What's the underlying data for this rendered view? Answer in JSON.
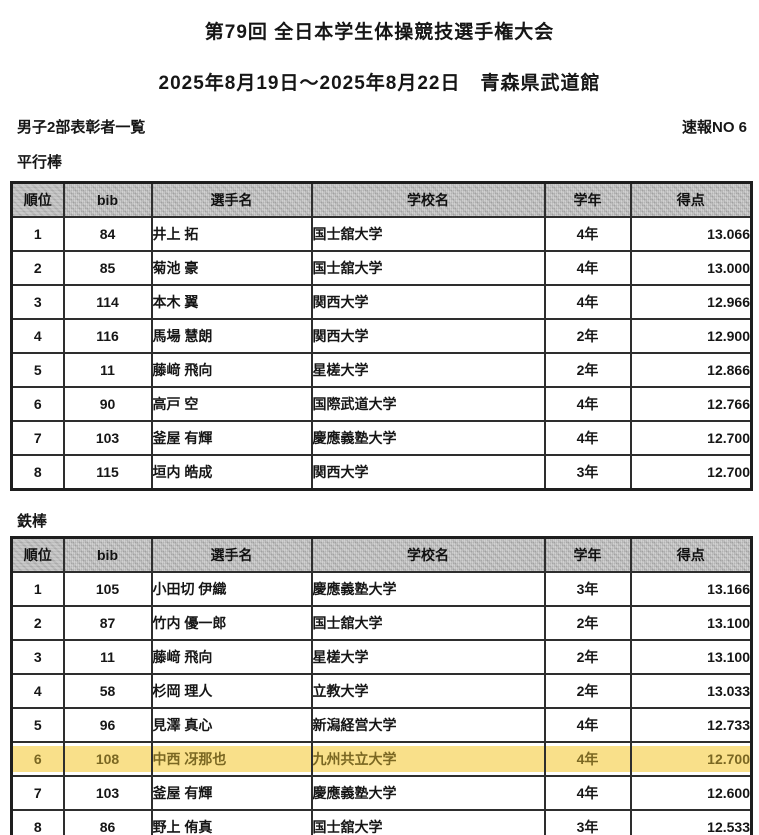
{
  "header": {
    "title": "第79回 全日本学生体操競技選手権大会",
    "date_venue": "2025年8月19日～2025年8月22日　青森県武道館",
    "list_label": "男子2部表彰者一覧",
    "bulletin_no": "速報NO 6"
  },
  "columns": {
    "rank": "順位",
    "bib": "bib",
    "name": "選手名",
    "school": "学校名",
    "grade": "学年",
    "score": "得点"
  },
  "sections": [
    {
      "event": "平行棒",
      "rows": [
        {
          "rank": "1",
          "bib": "84",
          "name": "井上 拓",
          "school": "国士舘大学",
          "grade": "4年",
          "score": "13.066",
          "highlight": false
        },
        {
          "rank": "2",
          "bib": "85",
          "name": "菊池 豪",
          "school": "国士舘大学",
          "grade": "4年",
          "score": "13.000",
          "highlight": false
        },
        {
          "rank": "3",
          "bib": "114",
          "name": "本木 翼",
          "school": "関西大学",
          "grade": "4年",
          "score": "12.966",
          "highlight": false
        },
        {
          "rank": "4",
          "bib": "116",
          "name": "馬場 慧朗",
          "school": "関西大学",
          "grade": "2年",
          "score": "12.900",
          "highlight": false
        },
        {
          "rank": "5",
          "bib": "11",
          "name": "藤﨑 飛向",
          "school": "星槎大学",
          "grade": "2年",
          "score": "12.866",
          "highlight": false
        },
        {
          "rank": "6",
          "bib": "90",
          "name": "高戸 空",
          "school": "国際武道大学",
          "grade": "4年",
          "score": "12.766",
          "highlight": false
        },
        {
          "rank": "7",
          "bib": "103",
          "name": "釜屋 有輝",
          "school": "慶應義塾大学",
          "grade": "4年",
          "score": "12.700",
          "highlight": false
        },
        {
          "rank": "8",
          "bib": "115",
          "name": "垣内 皓成",
          "school": "関西大学",
          "grade": "3年",
          "score": "12.700",
          "highlight": false
        }
      ]
    },
    {
      "event": "鉄棒",
      "rows": [
        {
          "rank": "1",
          "bib": "105",
          "name": "小田切 伊織",
          "school": "慶應義塾大学",
          "grade": "3年",
          "score": "13.166",
          "highlight": false
        },
        {
          "rank": "2",
          "bib": "87",
          "name": "竹内 優一郎",
          "school": "国士舘大学",
          "grade": "2年",
          "score": "13.100",
          "highlight": false
        },
        {
          "rank": "3",
          "bib": "11",
          "name": "藤﨑 飛向",
          "school": "星槎大学",
          "grade": "2年",
          "score": "13.100",
          "highlight": false
        },
        {
          "rank": "4",
          "bib": "58",
          "name": "杉岡 理人",
          "school": "立教大学",
          "grade": "2年",
          "score": "13.033",
          "highlight": false
        },
        {
          "rank": "5",
          "bib": "96",
          "name": "見澤 真心",
          "school": "新潟経営大学",
          "grade": "4年",
          "score": "12.733",
          "highlight": false
        },
        {
          "rank": "6",
          "bib": "108",
          "name": "中西 冴那也",
          "school": "九州共立大学",
          "grade": "4年",
          "score": "12.700",
          "highlight": true
        },
        {
          "rank": "7",
          "bib": "103",
          "name": "釜屋 有輝",
          "school": "慶應義塾大学",
          "grade": "4年",
          "score": "12.600",
          "highlight": false
        },
        {
          "rank": "8",
          "bib": "86",
          "name": "野上 侑真",
          "school": "国士舘大学",
          "grade": "3年",
          "score": "12.533",
          "highlight": false
        }
      ]
    }
  ],
  "colors": {
    "highlight": "#f9e08a",
    "highlight_text": "#7a6722",
    "header_cell_bg": "#c7c7c7"
  }
}
